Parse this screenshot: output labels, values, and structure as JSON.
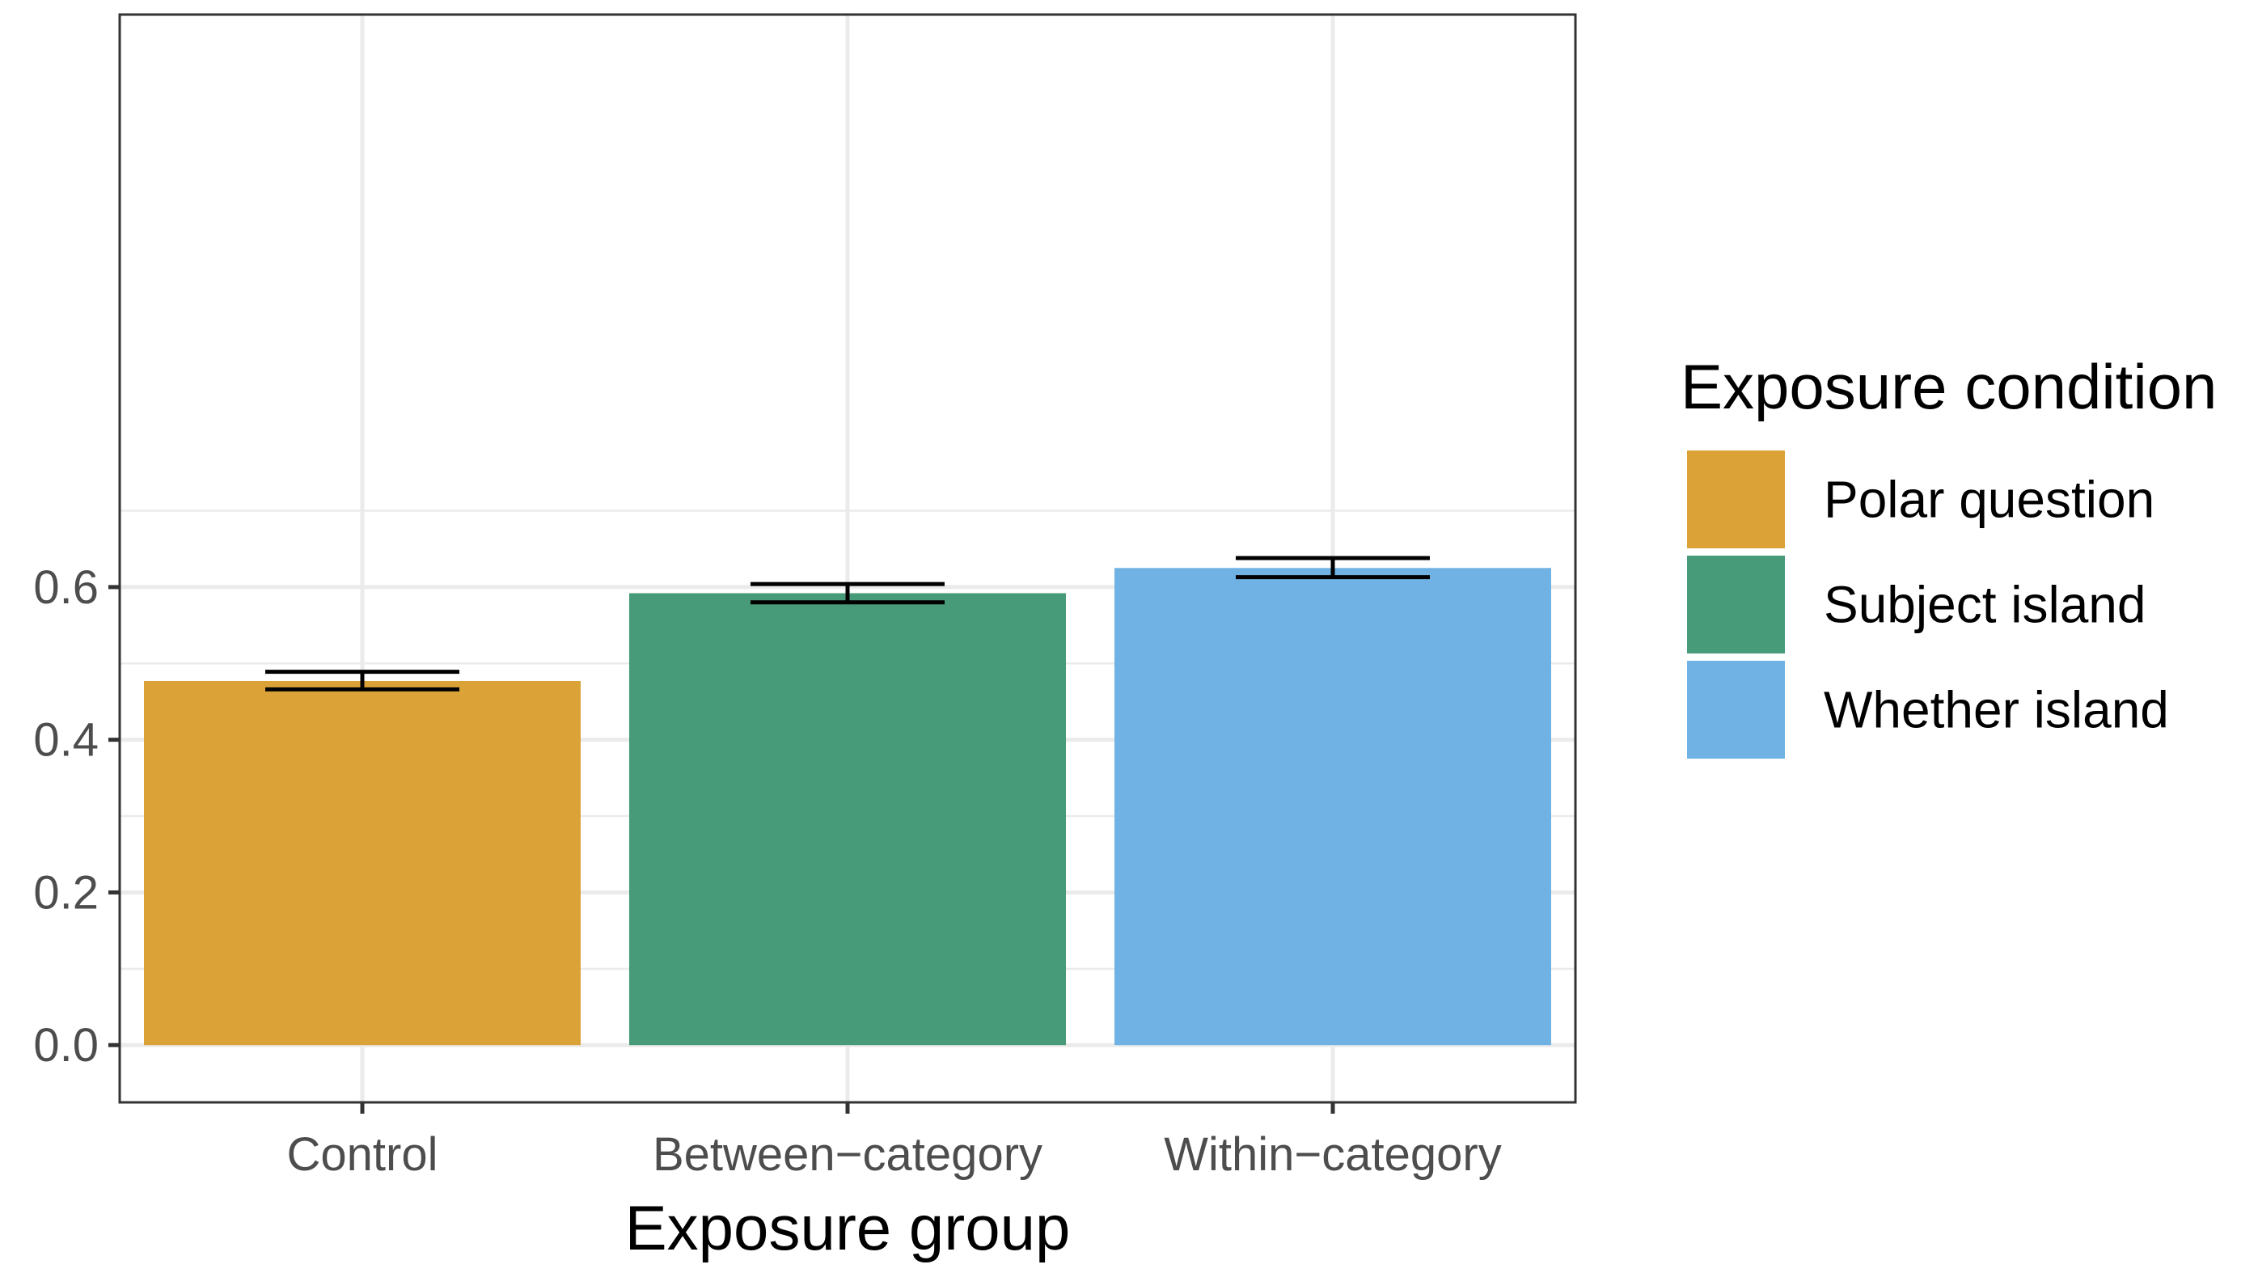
{
  "chart_data": {
    "type": "bar",
    "categories": [
      "Control",
      "Between−category",
      "Within−category"
    ],
    "values": [
      0.477,
      0.592,
      0.625
    ],
    "error_low": [
      0.466,
      0.58,
      0.613
    ],
    "error_high": [
      0.489,
      0.604,
      0.638
    ],
    "series_names": [
      "Polar question",
      "Subject island",
      "Whether island"
    ],
    "colors": [
      "#DBA337",
      "#479B78",
      "#6FB2E3"
    ],
    "xlabel": "Exposure group",
    "ylabel": "",
    "ylim": [
      -0.075,
      1.35
    ],
    "y_ticks": [
      0.0,
      0.2,
      0.4,
      0.6
    ],
    "y_tick_labels": [
      "0.0",
      "0.2",
      "0.4",
      "0.6"
    ],
    "legend": {
      "title": "Exposure condition",
      "placement": "right"
    },
    "grid": true
  }
}
